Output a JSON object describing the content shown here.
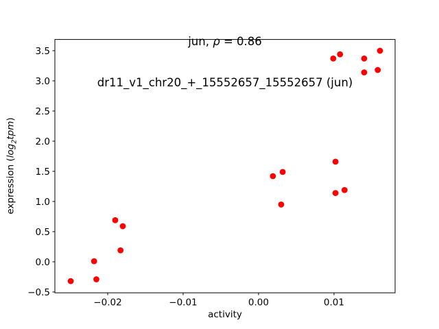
{
  "chart_data": {
    "type": "scatter",
    "title": {
      "line1_prefix": "jun, ",
      "line1_rho": "ρ",
      "line1_suffix": " = 0.86",
      "line2": "dr11_v1_chr20_+_15552657_15552657 (jun)"
    },
    "xlabel": "activity",
    "ylabel": {
      "prefix": "expression (",
      "math_word1": "log",
      "subscript": "2",
      "math_word2": "tpm",
      "suffix": ")"
    },
    "marker_color": "#ff0000",
    "axis_color": "#000000",
    "background_color": "#ffffff",
    "xlim": [
      -0.027,
      0.0181
    ],
    "ylim": [
      -0.514,
      3.686
    ],
    "xticks": [
      -0.02,
      -0.01,
      0.0,
      0.01
    ],
    "xtick_labels": [
      "−0.02",
      "−0.01",
      "0.00",
      "0.01"
    ],
    "yticks": [
      -0.5,
      0.0,
      0.5,
      1.0,
      1.5,
      2.0,
      2.5,
      3.0,
      3.5
    ],
    "ytick_labels": [
      "−0.5",
      "0.0",
      "0.5",
      "1.0",
      "1.5",
      "2.0",
      "2.5",
      "3.0",
      "3.5"
    ],
    "grid": false,
    "legend": null,
    "points": [
      [
        -0.0249,
        -0.32
      ],
      [
        -0.0218,
        0.01
      ],
      [
        -0.0215,
        -0.29
      ],
      [
        -0.019,
        0.69
      ],
      [
        -0.0183,
        0.19
      ],
      [
        -0.018,
        0.59
      ],
      [
        0.0019,
        1.42
      ],
      [
        0.003,
        0.95
      ],
      [
        0.0032,
        1.49
      ],
      [
        0.0099,
        3.37
      ],
      [
        0.0102,
        1.66
      ],
      [
        0.0102,
        1.14
      ],
      [
        0.0108,
        3.44
      ],
      [
        0.0114,
        1.19
      ],
      [
        0.014,
        3.37
      ],
      [
        0.014,
        3.14
      ],
      [
        0.0158,
        3.18
      ],
      [
        0.0161,
        3.5
      ]
    ]
  }
}
